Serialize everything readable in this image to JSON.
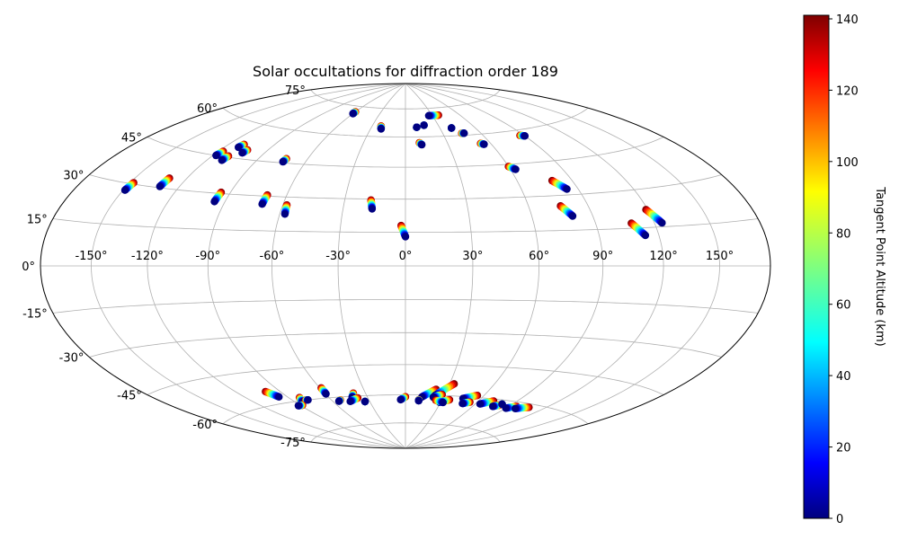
{
  "chart_data": {
    "type": "scatter",
    "projection": "hammer",
    "title": "Solar occultations for diffraction order 189",
    "grid": true,
    "lon_ticks": [
      "-150°",
      "-120°",
      "-90°",
      "-60°",
      "-30°",
      "0°",
      "30°",
      "60°",
      "90°",
      "120°",
      "150°"
    ],
    "lat_ticks": [
      "75°",
      "60°",
      "45°",
      "30°",
      "15°",
      "0°",
      "-15°",
      "-30°",
      "-45°",
      "-60°",
      "-75°"
    ],
    "colorbar": {
      "label": "Tangent Point Altitude (km)",
      "colormap": "jet",
      "range": [
        0,
        141
      ],
      "ticks": [
        "0",
        "20",
        "40",
        "60",
        "80",
        "100",
        "120",
        "140"
      ]
    },
    "x_label": "",
    "y_label": "",
    "occultations": [
      {
        "lon_start": -148.0,
        "lat_start": 30.5,
        "lon_end": -149.0,
        "lat_end": 27.5
      },
      {
        "lon_start": -130.0,
        "lat_start": 34.0,
        "lon_end": -131.0,
        "lat_end": 30.5
      },
      {
        "lon_start": -117.0,
        "lat_start": 47.0,
        "lon_end": -118.0,
        "lat_end": 45.0
      },
      {
        "lon_start": -110.0,
        "lat_start": 51.0,
        "lon_end": -111.0,
        "lat_end": 49.5
      },
      {
        "lon_start": -110.0,
        "lat_start": 45.5,
        "lon_end": -111.0,
        "lat_end": 43.5
      },
      {
        "lon_start": -103.0,
        "lat_start": 49.0,
        "lon_end": -104.0,
        "lat_end": 47.5
      },
      {
        "lon_start": -95.0,
        "lat_start": 30.5,
        "lon_end": -95.5,
        "lat_end": 26.5
      },
      {
        "lon_start": -73.0,
        "lat_start": 47.0,
        "lon_end": -73.5,
        "lat_end": 45.5
      },
      {
        "lon_start": -70.0,
        "lat_start": 30.5,
        "lon_end": -70.5,
        "lat_end": 26.5
      },
      {
        "lon_start": -58.0,
        "lat_start": 26.5,
        "lon_end": -57.5,
        "lat_end": 22.5
      },
      {
        "lon_start": -17.0,
        "lat_start": 29.5,
        "lon_end": -16.0,
        "lat_end": 25.5
      },
      {
        "lon_start": -2.0,
        "lat_start": 18.0,
        "lon_end": 0.0,
        "lat_end": 13.0
      },
      {
        "lon_start": 108.0,
        "lat_start": 17.0,
        "lon_end": 113.0,
        "lat_end": 12.0
      },
      {
        "lon_start": 119.0,
        "lat_start": 22.0,
        "lon_end": 124.0,
        "lat_end": 16.5
      },
      {
        "lon_start": 76.0,
        "lat_start": 25.5,
        "lon_end": 80.0,
        "lat_end": 21.0
      },
      {
        "lon_start": 79.0,
        "lat_start": 36.5,
        "lon_end": 84.0,
        "lat_end": 32.5
      },
      {
        "lon_start": 60.0,
        "lat_start": 44.0,
        "lon_end": 63.0,
        "lat_end": 42.5
      },
      {
        "lon_start": 53.0,
        "lat_start": 55.5,
        "lon_end": 55.0,
        "lat_end": 55.0
      },
      {
        "lon_start": 87.0,
        "lat_start": 57.5,
        "lon_end": 90.0,
        "lat_end": 57.0
      },
      {
        "lon_start": 10.0,
        "lat_start": 57.0,
        "lon_end": 11.5,
        "lat_end": 56.0
      },
      {
        "lon_start": 10.0,
        "lat_start": 65.0,
        "lon_end": 10.0,
        "lat_end": 65.0
      },
      {
        "lon_start": 17.0,
        "lat_start": 66.0,
        "lon_end": 17.0,
        "lat_end": 66.0
      },
      {
        "lon_start": 40.0,
        "lat_start": 64.0,
        "lon_end": 40.0,
        "lat_end": 64.0
      },
      {
        "lon_start": 45.0,
        "lat_start": 61.0,
        "lon_end": 47.0,
        "lat_end": 61.0
      },
      {
        "lon_start": -22.0,
        "lat_start": 65.5,
        "lon_end": -21.0,
        "lat_end": 64.0
      },
      {
        "lon_start": -60.0,
        "lat_start": 72.0,
        "lon_end": -60.0,
        "lat_end": 71.0
      },
      {
        "lon_start": 37.0,
        "lat_start": 71.0,
        "lon_end": 26.0,
        "lat_end": 71.0
      },
      {
        "lon_start": -100.0,
        "lat_start": -54.0,
        "lon_end": -96.0,
        "lat_end": -57.0
      },
      {
        "lon_start": -82.0,
        "lat_start": -58.5,
        "lon_end": -84.0,
        "lat_end": -60.5
      },
      {
        "lon_start": -80.0,
        "lat_start": -60.0,
        "lon_end": -78.0,
        "lat_end": -60.0
      },
      {
        "lon_start": -88.0,
        "lat_start": -62.0,
        "lon_end": -92.0,
        "lat_end": -62.0
      },
      {
        "lon_start": -59.0,
        "lat_start": -55.0,
        "lon_end": -59.5,
        "lat_end": -58.0
      },
      {
        "lon_start": -53.0,
        "lat_start": -61.5,
        "lon_end": -55.0,
        "lat_end": -62.0
      },
      {
        "lon_start": -39.0,
        "lat_start": -58.5,
        "lon_end": -42.0,
        "lat_end": -60.5
      },
      {
        "lon_start": -38.0,
        "lat_start": -61.0,
        "lon_end": -46.0,
        "lat_end": -62.5
      },
      {
        "lon_start": -34.0,
        "lat_start": -63.0,
        "lon_end": -34.0,
        "lat_end": -63.0
      },
      {
        "lon_start": 0.0,
        "lat_start": -61.0,
        "lon_end": -4.0,
        "lat_end": -62.5
      },
      {
        "lon_start": 22.0,
        "lat_start": -57.0,
        "lon_end": 13.0,
        "lat_end": -61.0
      },
      {
        "lon_start": 33.0,
        "lat_start": -54.0,
        "lon_end": 23.0,
        "lat_end": -60.0
      },
      {
        "lon_start": 28.0,
        "lat_start": -59.5,
        "lon_end": 22.0,
        "lat_end": -61.0
      },
      {
        "lon_start": 36.0,
        "lat_start": -62.0,
        "lon_end": 29.0,
        "lat_end": -63.5
      },
      {
        "lon_start": 25.0,
        "lat_start": -62.5,
        "lon_end": 32.0,
        "lat_end": -63.5
      },
      {
        "lon_start": 11.0,
        "lat_start": -62.5,
        "lon_end": 11.0,
        "lat_end": -63.0
      },
      {
        "lon_start": 55.0,
        "lat_start": -59.0,
        "lon_end": 46.0,
        "lat_end": -61.0
      },
      {
        "lon_start": 54.0,
        "lat_start": -62.5,
        "lon_end": 49.0,
        "lat_end": -63.5
      },
      {
        "lon_start": 72.0,
        "lat_start": -61.0,
        "lon_end": 64.0,
        "lat_end": -63.0
      },
      {
        "lon_start": 81.0,
        "lat_start": -62.5,
        "lon_end": 77.0,
        "lat_end": -63.5
      },
      {
        "lon_start": 82.0,
        "lat_start": -62.0,
        "lon_end": 82.0,
        "lat_end": -62.0
      },
      {
        "lon_start": 96.0,
        "lat_start": -62.0,
        "lon_end": 90.0,
        "lat_end": -63.5
      },
      {
        "lon_start": 107.0,
        "lat_start": -61.5,
        "lon_end": 98.0,
        "lat_end": -63.0
      }
    ]
  }
}
